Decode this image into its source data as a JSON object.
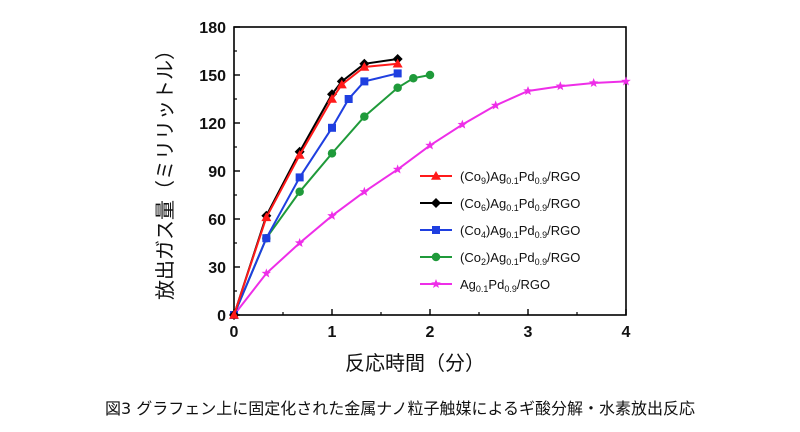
{
  "caption": "図3 グラフェン上に固定化された金属ナノ粒子触媒によるギ酸分解・水素放出反応",
  "chart_data": {
    "type": "line",
    "xlabel": "反応時間（分）",
    "ylabel": "放出ガス量（ミリリットル）",
    "xlim": [
      0,
      4
    ],
    "ylim": [
      0,
      180
    ],
    "x_ticks": [
      "0",
      "1",
      "2",
      "3",
      "4"
    ],
    "y_ticks": [
      "0",
      "30",
      "60",
      "90",
      "120",
      "150",
      "180"
    ],
    "grid": false,
    "legend_position": "inside-right",
    "series": [
      {
        "legend": [
          {
            "t": "(Co",
            "sub": false
          },
          {
            "t": "9",
            "sub": true
          },
          {
            "t": ")Ag",
            "sub": false
          },
          {
            "t": "0.1",
            "sub": true
          },
          {
            "t": "Pd",
            "sub": false
          },
          {
            "t": "0.9",
            "sub": true
          },
          {
            "t": "/RGO",
            "sub": false
          }
        ],
        "color": "#ff1a1a",
        "marker": "triangle",
        "x": [
          0,
          0.33,
          0.67,
          1.0,
          1.1,
          1.33,
          1.67
        ],
        "y": [
          0,
          61,
          100,
          135,
          144,
          155,
          157
        ]
      },
      {
        "legend": [
          {
            "t": "(Co",
            "sub": false
          },
          {
            "t": "6",
            "sub": true
          },
          {
            "t": ")Ag",
            "sub": false
          },
          {
            "t": "0.1",
            "sub": true
          },
          {
            "t": "Pd",
            "sub": false
          },
          {
            "t": "0.9",
            "sub": true
          },
          {
            "t": "/RGO",
            "sub": false
          }
        ],
        "color": "#000000",
        "marker": "diamond",
        "x": [
          0,
          0.33,
          0.67,
          1.0,
          1.1,
          1.33,
          1.67
        ],
        "y": [
          0,
          62,
          102,
          138,
          146,
          157,
          160
        ]
      },
      {
        "legend": [
          {
            "t": "(Co",
            "sub": false
          },
          {
            "t": "4",
            "sub": true
          },
          {
            "t": ")Ag",
            "sub": false
          },
          {
            "t": "0.1",
            "sub": true
          },
          {
            "t": "Pd",
            "sub": false
          },
          {
            "t": "0.9",
            "sub": true
          },
          {
            "t": "/RGO",
            "sub": false
          }
        ],
        "color": "#1f3fe0",
        "marker": "square",
        "x": [
          0,
          0.33,
          0.67,
          1.0,
          1.17,
          1.33,
          1.67
        ],
        "y": [
          0,
          48,
          86,
          117,
          135,
          146,
          151
        ]
      },
      {
        "legend": [
          {
            "t": "(Co",
            "sub": false
          },
          {
            "t": "2",
            "sub": true
          },
          {
            "t": ")Ag",
            "sub": false
          },
          {
            "t": "0.1",
            "sub": true
          },
          {
            "t": "Pd",
            "sub": false
          },
          {
            "t": "0.9",
            "sub": true
          },
          {
            "t": "/RGO",
            "sub": false
          }
        ],
        "color": "#1f9a3a",
        "marker": "circle",
        "x": [
          0,
          0.33,
          0.67,
          1.0,
          1.33,
          1.67,
          1.83,
          2.0
        ],
        "y": [
          0,
          48,
          77,
          101,
          124,
          142,
          148,
          150
        ]
      },
      {
        "legend": [
          {
            "t": "Ag",
            "sub": false
          },
          {
            "t": "0.1",
            "sub": true
          },
          {
            "t": "Pd",
            "sub": false
          },
          {
            "t": "0.9",
            "sub": true
          },
          {
            "t": "/RGO",
            "sub": false
          }
        ],
        "color": "#ee2ee8",
        "marker": "star",
        "x": [
          0,
          0.33,
          0.67,
          1.0,
          1.33,
          1.67,
          2.0,
          2.33,
          2.67,
          3.0,
          3.33,
          3.67,
          4.0
        ],
        "y": [
          0,
          26,
          45,
          62,
          77,
          91,
          106,
          119,
          131,
          140,
          143,
          145,
          146
        ]
      }
    ]
  }
}
